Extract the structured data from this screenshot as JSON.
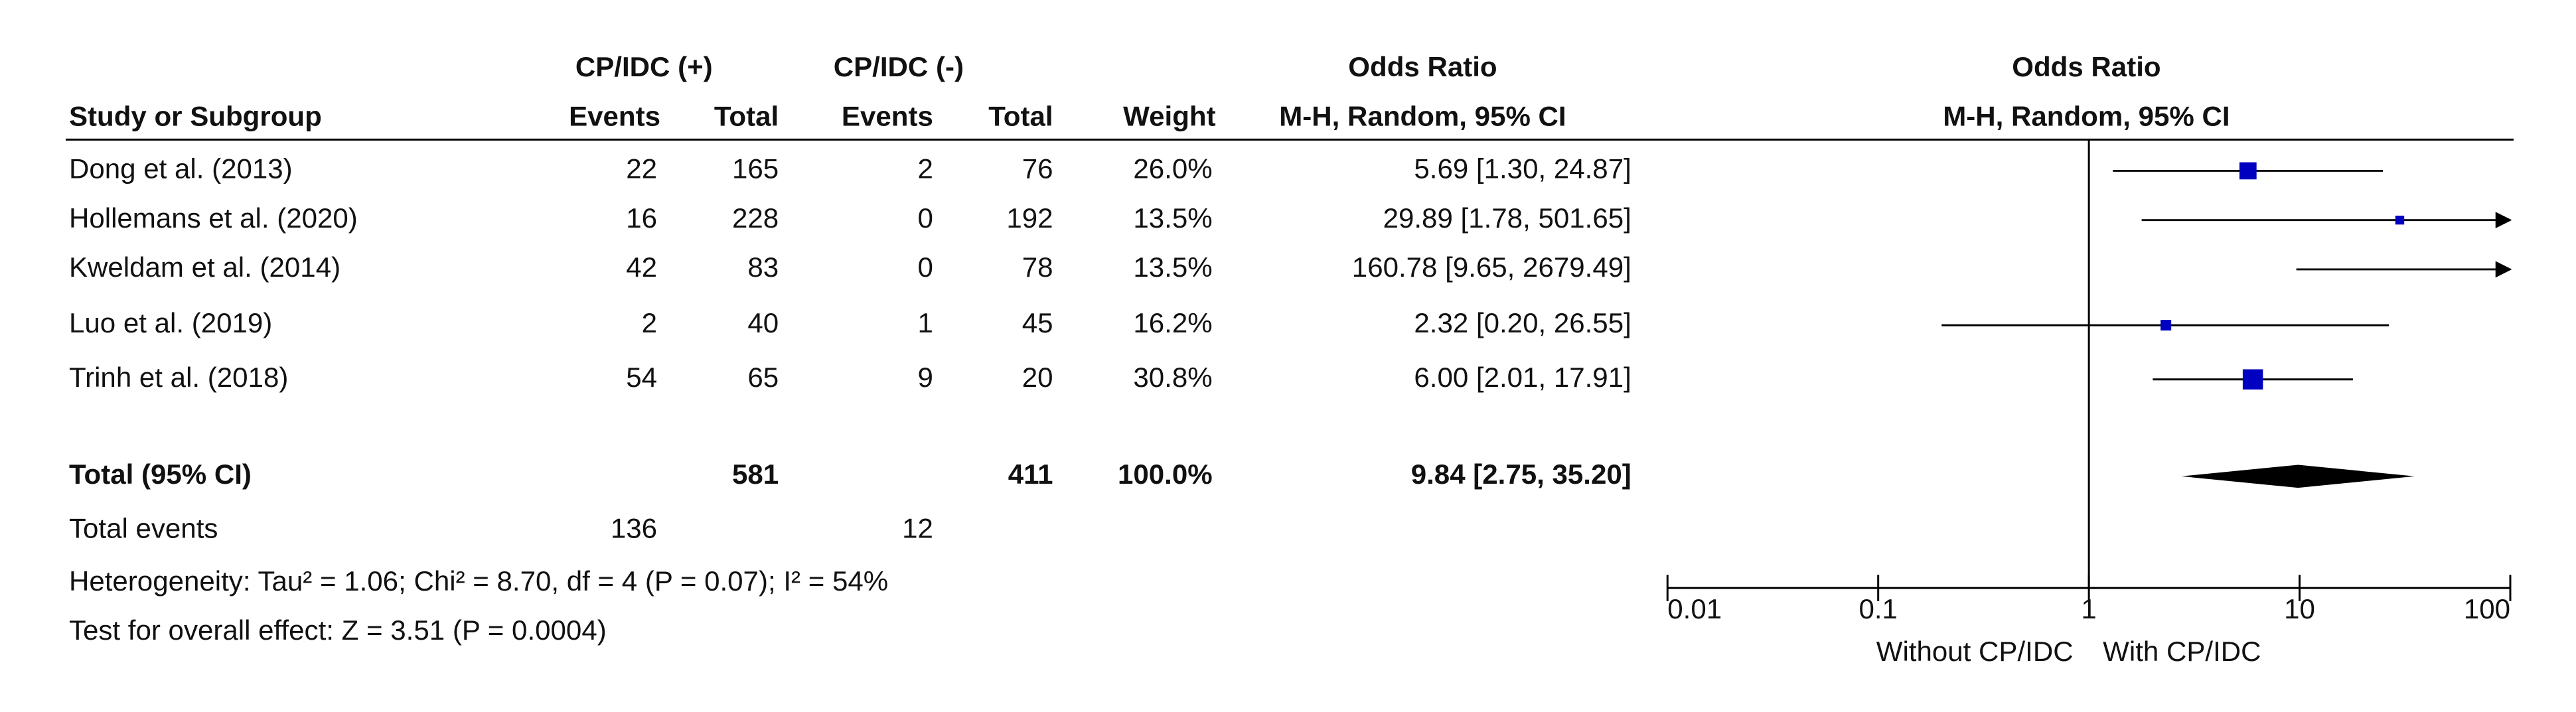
{
  "chart_data": {
    "type": "forest",
    "group_headers": {
      "experimental": "CP/IDC (+)",
      "control": "CP/IDC (-)",
      "effect": "Odds Ratio",
      "plot": "Odds Ratio"
    },
    "columns": [
      "Study or Subgroup",
      "Events",
      "Total",
      "Events",
      "Total",
      "Weight",
      "M-H, Random, 95% CI"
    ],
    "plot_subtitle": "M-H, Random, 95% CI",
    "studies": [
      {
        "name": "Dong et al. (2013)",
        "exp_events": 22,
        "exp_total": 165,
        "ctrl_events": 2,
        "ctrl_total": 76,
        "weight": 26.0,
        "weight_label": "26.0%",
        "or": 5.69,
        "ci": [
          1.3,
          24.87
        ],
        "or_label": "5.69 [1.30, 24.87]"
      },
      {
        "name": "Hollemans et al. (2020)",
        "exp_events": 16,
        "exp_total": 228,
        "ctrl_events": 0,
        "ctrl_total": 192,
        "weight": 13.5,
        "weight_label": "13.5%",
        "or": 29.89,
        "ci": [
          1.78,
          501.65
        ],
        "or_label": "29.89 [1.78, 501.65]"
      },
      {
        "name": "Kweldam et al. (2014)",
        "exp_events": 42,
        "exp_total": 83,
        "ctrl_events": 0,
        "ctrl_total": 78,
        "weight": 13.5,
        "weight_label": "13.5%",
        "or": 160.78,
        "ci": [
          9.65,
          2679.49
        ],
        "or_label": "160.78 [9.65, 2679.49]"
      },
      {
        "name": "Luo et al. (2019)",
        "exp_events": 2,
        "exp_total": 40,
        "ctrl_events": 1,
        "ctrl_total": 45,
        "weight": 16.2,
        "weight_label": "16.2%",
        "or": 2.32,
        "ci": [
          0.2,
          26.55
        ],
        "or_label": "2.32 [0.20, 26.55]"
      },
      {
        "name": "Trinh et al. (2018)",
        "exp_events": 54,
        "exp_total": 65,
        "ctrl_events": 9,
        "ctrl_total": 20,
        "weight": 30.8,
        "weight_label": "30.8%",
        "or": 6.0,
        "ci": [
          2.01,
          17.91
        ],
        "or_label": "6.00 [2.01, 17.91]"
      }
    ],
    "total": {
      "name": "Total (95% CI)",
      "exp_total": 581,
      "ctrl_total": 411,
      "weight_label": "100.0%",
      "or": 9.84,
      "ci": [
        2.75,
        35.2
      ],
      "or_label": "9.84 [2.75, 35.20]"
    },
    "events": {
      "name": "Total events",
      "exp": 136,
      "ctrl": 12
    },
    "heterogeneity": "Heterogeneity: Tau² = 1.06; Chi² = 8.70, df = 4 (P = 0.07); I² = 54%",
    "overall_effect": "Test for overall effect: Z = 3.51 (P = 0.0004)",
    "xscale": "log",
    "xlim": [
      0.01,
      100
    ],
    "xticks": [
      0.01,
      0.1,
      1,
      10,
      100
    ],
    "favours": [
      "Without CP/IDC",
      "With CP/IDC"
    ],
    "color": "#0000c0"
  }
}
